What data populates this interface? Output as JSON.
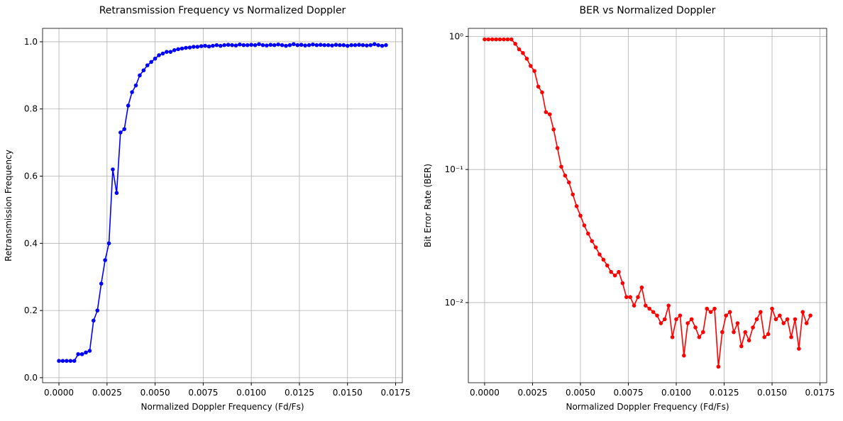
{
  "chart_data": [
    {
      "type": "line",
      "title": "Retransmission Frequency vs Normalized Doppler",
      "xlabel": "Normalized Doppler Frequency (Fd/Fs)",
      "ylabel": "Retransmission Frequency",
      "x": [
        0,
        0.0002,
        0.0004,
        0.0006,
        0.0008,
        0.001,
        0.0012,
        0.0014,
        0.0016,
        0.0018,
        0.002,
        0.0022,
        0.0024,
        0.0026,
        0.0028,
        0.003,
        0.0032,
        0.0034,
        0.0036,
        0.0038,
        0.004,
        0.0042,
        0.0044,
        0.0046,
        0.0048,
        0.005,
        0.0052,
        0.0054,
        0.0056,
        0.0058,
        0.006,
        0.0062,
        0.0064,
        0.0066,
        0.0068,
        0.007,
        0.0072,
        0.0074,
        0.0076,
        0.0078,
        0.008,
        0.0082,
        0.0084,
        0.0086,
        0.0088,
        0.009,
        0.0092,
        0.0094,
        0.0096,
        0.0098,
        0.01,
        0.0102,
        0.0104,
        0.0106,
        0.0108,
        0.011,
        0.0112,
        0.0114,
        0.0116,
        0.0118,
        0.012,
        0.0122,
        0.0124,
        0.0126,
        0.0128,
        0.013,
        0.0132,
        0.0134,
        0.0136,
        0.0138,
        0.014,
        0.0142,
        0.0144,
        0.0146,
        0.0148,
        0.015,
        0.0152,
        0.0154,
        0.0156,
        0.0158,
        0.016,
        0.0162,
        0.0164,
        0.0166,
        0.0168,
        0.017
      ],
      "series": [
        {
          "color": "#0000ff",
          "values": [
            0.05,
            0.05,
            0.05,
            0.05,
            0.05,
            0.07,
            0.07,
            0.075,
            0.08,
            0.17,
            0.2,
            0.28,
            0.35,
            0.4,
            0.62,
            0.55,
            0.73,
            0.74,
            0.81,
            0.85,
            0.87,
            0.9,
            0.915,
            0.93,
            0.94,
            0.95,
            0.96,
            0.965,
            0.97,
            0.97,
            0.975,
            0.978,
            0.98,
            0.982,
            0.983,
            0.985,
            0.985,
            0.987,
            0.988,
            0.986,
            0.988,
            0.99,
            0.988,
            0.99,
            0.991,
            0.99,
            0.989,
            0.992,
            0.99,
            0.99,
            0.991,
            0.99,
            0.993,
            0.99,
            0.989,
            0.991,
            0.99,
            0.992,
            0.99,
            0.988,
            0.99,
            0.993,
            0.99,
            0.991,
            0.989,
            0.99,
            0.992,
            0.99,
            0.991,
            0.99,
            0.99,
            0.989,
            0.991,
            0.99,
            0.99,
            0.988,
            0.99,
            0.99,
            0.991,
            0.99,
            0.989,
            0.99,
            0.993,
            0.99,
            0.988,
            0.99
          ]
        }
      ],
      "xlim": [
        -0.00085,
        0.01785
      ],
      "ylim": [
        -0.015,
        1.04
      ],
      "yscale": "linear",
      "grid": true,
      "xticks": [
        {
          "value": 0,
          "label": "0.0000"
        },
        {
          "value": 0.0025,
          "label": "0.0025"
        },
        {
          "value": 0.005,
          "label": "0.0050"
        },
        {
          "value": 0.0075,
          "label": "0.0075"
        },
        {
          "value": 0.01,
          "label": "0.0100"
        },
        {
          "value": 0.0125,
          "label": "0.0125"
        },
        {
          "value": 0.015,
          "label": "0.0150"
        },
        {
          "value": 0.0175,
          "label": "0.0175"
        }
      ],
      "yticks": [
        {
          "value": 0,
          "label": "0.0"
        },
        0.2,
        0.4,
        0.6,
        0.8,
        {
          "value": 1,
          "label": "1.0"
        }
      ]
    },
    {
      "type": "line",
      "title": "BER vs Normalized Doppler",
      "xlabel": "Normalized Doppler Frequency (Fd/Fs)",
      "ylabel": "Bit Error Rate (BER)",
      "x": [
        0,
        0.0002,
        0.0004,
        0.0006,
        0.0008,
        0.001,
        0.0012,
        0.0014,
        0.0016,
        0.0018,
        0.002,
        0.0022,
        0.0024,
        0.0026,
        0.0028,
        0.003,
        0.0032,
        0.0034,
        0.0036,
        0.0038,
        0.004,
        0.0042,
        0.0044,
        0.0046,
        0.0048,
        0.005,
        0.0052,
        0.0054,
        0.0056,
        0.0058,
        0.006,
        0.0062,
        0.0064,
        0.0066,
        0.0068,
        0.007,
        0.0072,
        0.0074,
        0.0076,
        0.0078,
        0.008,
        0.0082,
        0.0084,
        0.0086,
        0.0088,
        0.009,
        0.0092,
        0.0094,
        0.0096,
        0.0098,
        0.01,
        0.0102,
        0.0104,
        0.0106,
        0.0108,
        0.011,
        0.0112,
        0.0114,
        0.0116,
        0.0118,
        0.012,
        0.0122,
        0.0124,
        0.0126,
        0.0128,
        0.013,
        0.0132,
        0.0134,
        0.0136,
        0.0138,
        0.014,
        0.0142,
        0.0144,
        0.0146,
        0.0148,
        0.015,
        0.0152,
        0.0154,
        0.0156,
        0.0158,
        0.016,
        0.0162,
        0.0164,
        0.0166,
        0.0168,
        0.017
      ],
      "series": [
        {
          "color": "#ff0000",
          "values": [
            0.95,
            0.95,
            0.95,
            0.95,
            0.95,
            0.95,
            0.95,
            0.95,
            0.88,
            0.8,
            0.75,
            0.68,
            0.6,
            0.55,
            0.42,
            0.38,
            0.27,
            0.26,
            0.2,
            0.145,
            0.105,
            0.09,
            0.08,
            0.065,
            0.053,
            0.045,
            0.038,
            0.033,
            0.029,
            0.026,
            0.023,
            0.021,
            0.019,
            0.017,
            0.016,
            0.017,
            0.014,
            0.011,
            0.011,
            0.0095,
            0.011,
            0.013,
            0.0095,
            0.009,
            0.0085,
            0.008,
            0.007,
            0.0075,
            0.0095,
            0.0055,
            0.0075,
            0.008,
            0.004,
            0.007,
            0.0075,
            0.0065,
            0.0055,
            0.006,
            0.009,
            0.0085,
            0.009,
            0.0033,
            0.006,
            0.008,
            0.0085,
            0.006,
            0.007,
            0.0047,
            0.006,
            0.0052,
            0.0065,
            0.0075,
            0.0085,
            0.0055,
            0.0058,
            0.009,
            0.0075,
            0.008,
            0.007,
            0.0075,
            0.0055,
            0.0075,
            0.0045,
            0.0085,
            0.007,
            0.008
          ]
        }
      ],
      "xlim": [
        -0.00085,
        0.01785
      ],
      "ylim": [
        0.0025,
        1.15
      ],
      "yscale": "log",
      "grid": true,
      "xticks": [
        {
          "value": 0,
          "label": "0.0000"
        },
        {
          "value": 0.0025,
          "label": "0.0025"
        },
        {
          "value": 0.005,
          "label": "0.0050"
        },
        {
          "value": 0.0075,
          "label": "0.0075"
        },
        {
          "value": 0.01,
          "label": "0.0100"
        },
        {
          "value": 0.0125,
          "label": "0.0125"
        },
        {
          "value": 0.015,
          "label": "0.0150"
        },
        {
          "value": 0.0175,
          "label": "0.0175"
        }
      ],
      "yticks": [
        {
          "value": 1,
          "label": "10⁰"
        },
        {
          "value": 0.1,
          "label": "10⁻¹"
        },
        {
          "value": 0.01,
          "label": "10⁻²"
        }
      ]
    }
  ]
}
